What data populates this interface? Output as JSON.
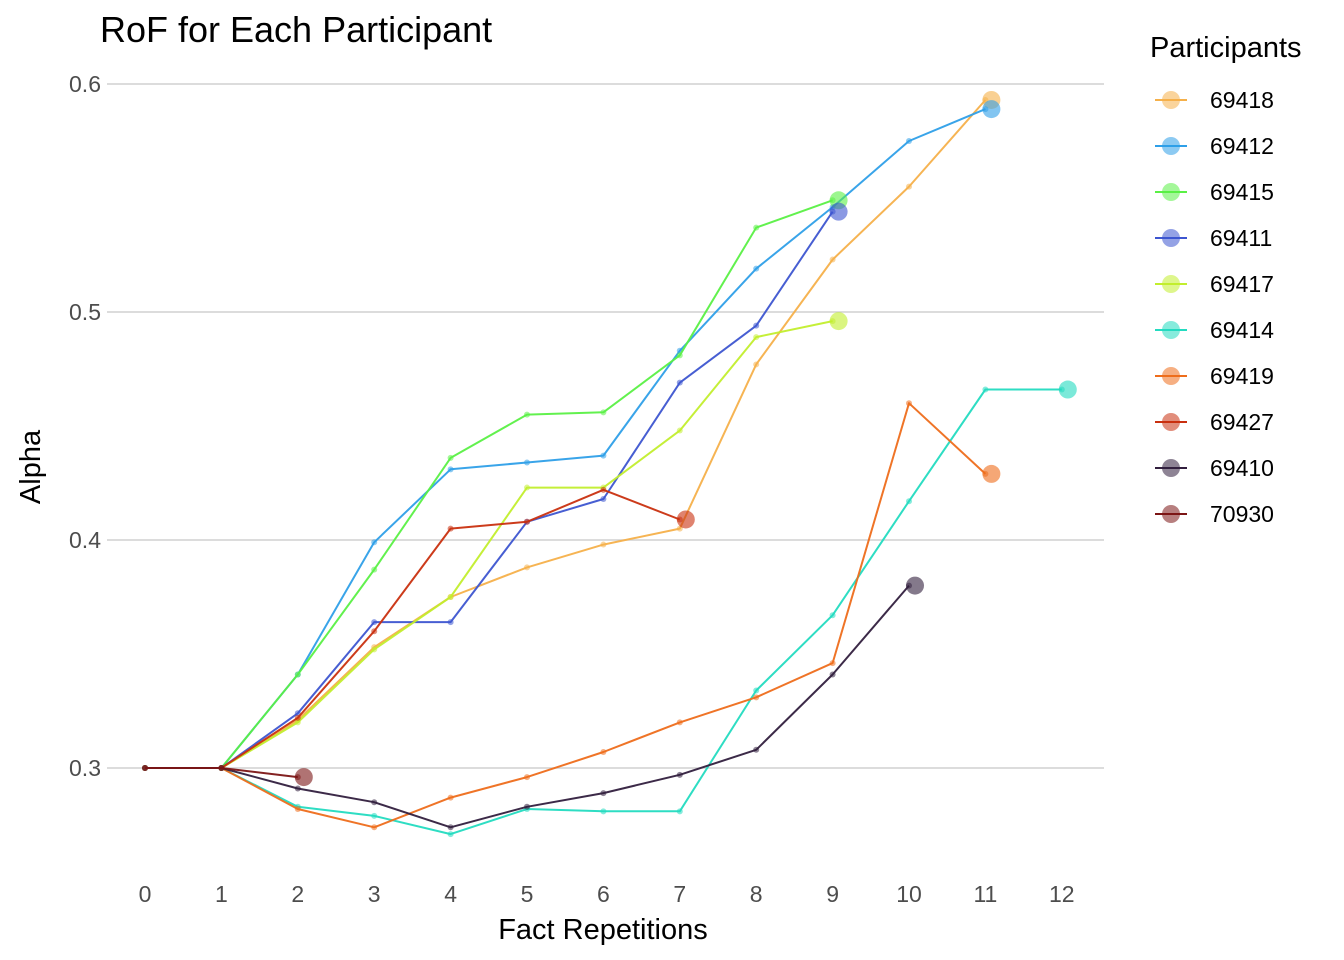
{
  "chart_data": {
    "type": "line",
    "title": "RoF for Each Participant",
    "xlabel": "Fact Repetitions",
    "ylabel": "Alpha",
    "xlim": [
      0,
      12
    ],
    "ylim": [
      0.3,
      0.6
    ],
    "x_ticks": [
      "0",
      "1",
      "2",
      "3",
      "4",
      "5",
      "6",
      "7",
      "8",
      "9",
      "10",
      "11",
      "12"
    ],
    "y_ticks": [
      "0.3",
      "0.4",
      "0.5",
      "0.6"
    ],
    "grid": "horizontal major",
    "legend_title": "Participants",
    "legend_position": "right",
    "series": [
      {
        "name": "69418",
        "color": "#F5B04A",
        "x": [
          0,
          1,
          2,
          3,
          4,
          5,
          6,
          7,
          8,
          9,
          10,
          11
        ],
        "y": [
          0.3,
          0.3,
          0.321,
          0.353,
          0.375,
          0.388,
          0.398,
          0.405,
          0.477,
          0.523,
          0.555,
          0.593
        ]
      },
      {
        "name": "69412",
        "color": "#2E9FE8",
        "x": [
          0,
          1,
          2,
          3,
          4,
          5,
          6,
          7,
          8,
          9,
          10,
          11
        ],
        "y": [
          0.3,
          0.3,
          0.341,
          0.399,
          0.431,
          0.434,
          0.437,
          0.483,
          0.519,
          0.546,
          0.575,
          0.589
        ]
      },
      {
        "name": "69415",
        "color": "#5AF045",
        "x": [
          0,
          1,
          2,
          3,
          4,
          5,
          6,
          7,
          8,
          9
        ],
        "y": [
          0.3,
          0.3,
          0.341,
          0.387,
          0.436,
          0.455,
          0.456,
          0.481,
          0.537,
          0.549
        ]
      },
      {
        "name": "69411",
        "color": "#3D55D0",
        "x": [
          0,
          1,
          2,
          3,
          4,
          5,
          6,
          7,
          8,
          9
        ],
        "y": [
          0.3,
          0.3,
          0.324,
          0.364,
          0.364,
          0.408,
          0.418,
          0.469,
          0.494,
          0.544
        ]
      },
      {
        "name": "69417",
        "color": "#C2EE2D",
        "x": [
          0,
          1,
          2,
          3,
          4,
          5,
          6,
          7,
          8,
          9
        ],
        "y": [
          0.3,
          0.3,
          0.32,
          0.352,
          0.375,
          0.423,
          0.423,
          0.448,
          0.489,
          0.496
        ]
      },
      {
        "name": "69414",
        "color": "#23DBC0",
        "x": [
          0,
          1,
          2,
          3,
          4,
          5,
          6,
          7,
          8,
          9,
          10,
          11,
          12
        ],
        "y": [
          0.3,
          0.3,
          0.283,
          0.279,
          0.271,
          0.282,
          0.281,
          0.281,
          0.334,
          0.367,
          0.417,
          0.466,
          0.466
        ]
      },
      {
        "name": "69419",
        "color": "#EE6D1B",
        "x": [
          0,
          1,
          2,
          3,
          4,
          5,
          6,
          7,
          8,
          9,
          10,
          11
        ],
        "y": [
          0.3,
          0.3,
          0.282,
          0.274,
          0.287,
          0.296,
          0.307,
          0.32,
          0.331,
          0.346,
          0.46,
          0.429
        ]
      },
      {
        "name": "69427",
        "color": "#C9300F",
        "x": [
          0,
          1,
          2,
          3,
          4,
          5,
          6,
          7
        ],
        "y": [
          0.3,
          0.3,
          0.322,
          0.36,
          0.405,
          0.408,
          0.422,
          0.409
        ]
      },
      {
        "name": "69410",
        "color": "#321F3E",
        "x": [
          0,
          1,
          2,
          3,
          4,
          5,
          6,
          7,
          8,
          9,
          10
        ],
        "y": [
          0.3,
          0.3,
          0.291,
          0.285,
          0.274,
          0.283,
          0.289,
          0.297,
          0.308,
          0.341,
          0.38
        ]
      },
      {
        "name": "70930",
        "color": "#7C1515",
        "x": [
          0,
          1,
          2
        ],
        "y": [
          0.3,
          0.3,
          0.296
        ]
      }
    ]
  }
}
